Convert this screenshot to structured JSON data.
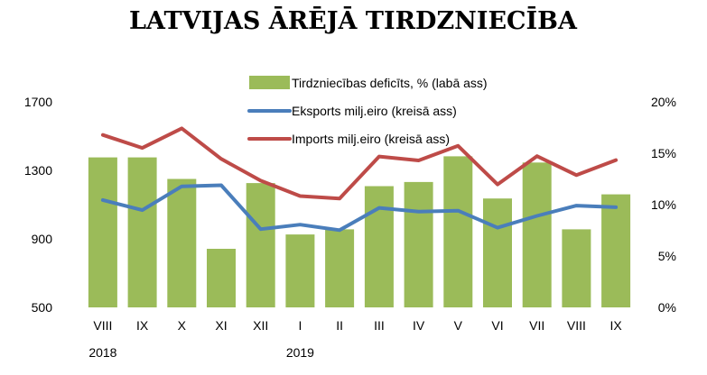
{
  "chart_data": {
    "type": "bar+line",
    "title": "LATVIJAS ĀRĒJĀ TIRDZNIECĪBA",
    "categories": [
      "VIII",
      "IX",
      "X",
      "XI",
      "XII",
      "I",
      "II",
      "III",
      "IV",
      "V",
      "VI",
      "VII",
      "VIII",
      "IX"
    ],
    "year_labels": [
      {
        "label": "2018",
        "category_index": 0
      },
      {
        "label": "2019",
        "category_index": 5
      }
    ],
    "left_axis": {
      "ylim": [
        500,
        1700
      ],
      "ticks": [
        "500",
        "900",
        "1300",
        "1700"
      ]
    },
    "right_axis": {
      "ylim": [
        0,
        20
      ],
      "ticks": [
        "0%",
        "5%",
        "10%",
        "15%",
        "20%"
      ]
    },
    "series": [
      {
        "name": "Tirdzniecības deficīts, % (labā ass)",
        "type": "bar",
        "axis": "right",
        "color": "#9bbb59",
        "values": [
          14.6,
          14.6,
          12.5,
          5.7,
          12.1,
          7.1,
          7.6,
          11.8,
          12.2,
          14.7,
          10.6,
          14.1,
          7.6,
          11.0
        ]
      },
      {
        "name": "Eksports milj.eiro (kreisā ass)",
        "type": "line",
        "axis": "left",
        "color": "#4a7ebb",
        "values": [
          1127,
          1068,
          1207,
          1213,
          957,
          983,
          951,
          1081,
          1059,
          1065,
          965,
          1034,
          1094,
          1085
        ]
      },
      {
        "name": "Imports milj.eiro (kreisā ass)",
        "type": "line",
        "axis": "left",
        "color": "#be4b48",
        "values": [
          1507,
          1431,
          1545,
          1367,
          1240,
          1150,
          1136,
          1381,
          1358,
          1443,
          1218,
          1383,
          1272,
          1360
        ]
      }
    ],
    "legend_position": "top-center"
  }
}
